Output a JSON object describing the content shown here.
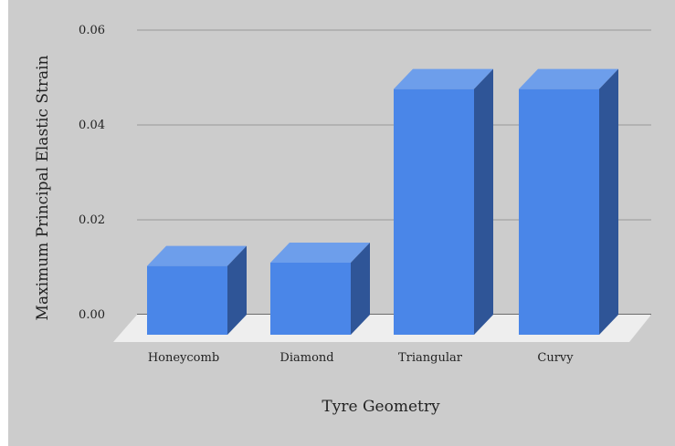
{
  "chart_data": {
    "type": "bar",
    "categories": [
      "Honeycomb",
      "Diamond",
      "Triangular",
      "Curvy"
    ],
    "values": [
      0.0145,
      0.0152,
      0.0518,
      0.0518
    ],
    "xlabel": "Tyre Geometry",
    "ylabel": "Maximum Principal Elastic Strain",
    "ylim": [
      0,
      0.06
    ],
    "yticks": [
      "0.00",
      "0.02",
      "0.04",
      "0.06"
    ],
    "grid": true,
    "style": "3d-column",
    "colors": {
      "bar_front": "#4a86e8",
      "bar_top": "#6d9eeb",
      "bar_side": "#2f5597",
      "background": "#cccccc",
      "floor": "#eeeeee",
      "gridline": "#999999"
    }
  }
}
